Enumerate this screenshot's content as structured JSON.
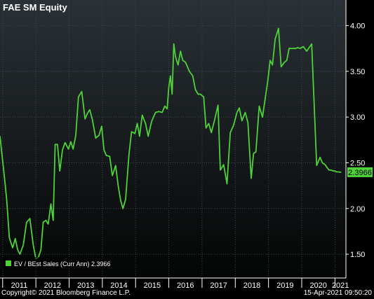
{
  "title": "FAE SM Equity",
  "footer": {
    "copyright": "Copyright© 2021 Bloomberg Finance L.P.",
    "timestamp": "15-Apr-2021 09:50:20"
  },
  "colors": {
    "line": "#4fd13a",
    "background_top": "#2a3136",
    "background_bottom": "#040505",
    "axis": "#ffffff",
    "grid": "#3c4448",
    "last_value_badge": "#4fd13a"
  },
  "chart_data": {
    "type": "line",
    "title": "FAE SM Equity",
    "grid": true,
    "legend_position": "bottom-left",
    "x_tick_labels": [
      "2011",
      "2012",
      "2013",
      "2014",
      "2015",
      "2016",
      "2017",
      "2018",
      "2019",
      "2020",
      "2021"
    ],
    "y_tick_labels": [
      "1.50",
      "2.00",
      "2.50",
      "3.00",
      "3.50",
      "4.00"
    ],
    "y_ticks": [
      1.5,
      2.0,
      2.5,
      3.0,
      3.5,
      4.0
    ],
    "xlim": [
      2010.92,
      2021.33
    ],
    "ylim": [
      1.24,
      4.28
    ],
    "last_value_label": "2.3966",
    "series": [
      {
        "name": "EV / BEst Sales (Curr Ann) 2.3966",
        "x": [
          2010.92,
          2011.0,
          2011.05,
          2011.12,
          2011.2,
          2011.3,
          2011.38,
          2011.45,
          2011.52,
          2011.62,
          2011.72,
          2011.82,
          2011.92,
          2012.0,
          2012.08,
          2012.15,
          2012.22,
          2012.3,
          2012.37,
          2012.45,
          2012.52,
          2012.58,
          2012.65,
          2012.72,
          2012.8,
          2012.88,
          2012.98,
          2013.05,
          2013.12,
          2013.2,
          2013.28,
          2013.38,
          2013.48,
          2013.55,
          2013.62,
          2013.7,
          2013.8,
          2013.9,
          2013.98,
          2014.05,
          2014.12,
          2014.22,
          2014.3,
          2014.4,
          2014.48,
          2014.55,
          2014.62,
          2014.7,
          2014.8,
          2014.88,
          2014.98,
          2015.05,
          2015.12,
          2015.2,
          2015.3,
          2015.38,
          2015.48,
          2015.6,
          2015.7,
          2015.8,
          2015.88,
          2015.95,
          2016.0,
          2016.05,
          2016.1,
          2016.15,
          2016.2,
          2016.28,
          2016.35,
          2016.42,
          2016.5,
          2016.62,
          2016.72,
          2016.8,
          2016.88,
          2016.95,
          2017.05,
          2017.12,
          2017.2,
          2017.28,
          2017.38,
          2017.48,
          2017.55,
          2017.65,
          2017.75,
          2017.85,
          2017.95,
          2018.05,
          2018.12,
          2018.2,
          2018.3,
          2018.38,
          2018.48,
          2018.55,
          2018.62,
          2018.72,
          2018.82,
          2018.9,
          2018.98,
          2019.05,
          2019.12,
          2019.2,
          2019.3,
          2019.38,
          2019.48,
          2019.55,
          2019.62,
          2019.72,
          2019.82,
          2019.88,
          2019.95,
          2020.05,
          2020.15,
          2020.3,
          2020.45,
          2020.55,
          2020.62,
          2020.7,
          2020.76,
          2020.82,
          2020.88,
          2020.95,
          2021.0,
          2021.05,
          2021.1,
          2021.18
        ],
        "values": [
          2.79,
          2.52,
          2.35,
          2.1,
          1.68,
          1.57,
          1.67,
          1.55,
          1.5,
          1.6,
          1.85,
          1.89,
          1.6,
          1.45,
          1.47,
          1.55,
          1.85,
          1.87,
          1.83,
          2.05,
          1.87,
          2.7,
          2.7,
          2.41,
          2.64,
          2.72,
          2.65,
          2.73,
          2.65,
          2.8,
          3.22,
          3.28,
          2.98,
          3.04,
          3.08,
          2.97,
          2.77,
          2.8,
          2.9,
          2.64,
          2.58,
          2.57,
          2.36,
          2.47,
          2.24,
          2.09,
          2.0,
          2.1,
          2.59,
          2.84,
          2.82,
          2.93,
          2.79,
          3.02,
          2.93,
          2.79,
          2.95,
          3.05,
          3.06,
          3.05,
          3.12,
          3.09,
          3.33,
          3.45,
          3.25,
          3.8,
          3.66,
          3.57,
          3.72,
          3.62,
          3.6,
          3.5,
          3.45,
          3.3,
          3.25,
          3.25,
          3.22,
          2.88,
          2.93,
          2.83,
          2.97,
          3.13,
          2.42,
          2.48,
          2.27,
          2.83,
          2.91,
          3.05,
          3.1,
          2.96,
          3.05,
          2.94,
          2.33,
          2.6,
          2.62,
          3.12,
          3.0,
          3.2,
          3.4,
          3.62,
          3.57,
          3.85,
          3.97,
          3.55,
          3.6,
          3.62,
          3.75,
          3.75,
          3.75,
          3.76,
          3.75,
          3.77,
          3.72,
          3.8,
          2.47,
          2.56,
          2.5,
          2.48,
          2.45,
          2.42,
          2.42,
          2.41,
          2.41,
          2.4,
          2.4,
          2.3966
        ]
      }
    ]
  }
}
